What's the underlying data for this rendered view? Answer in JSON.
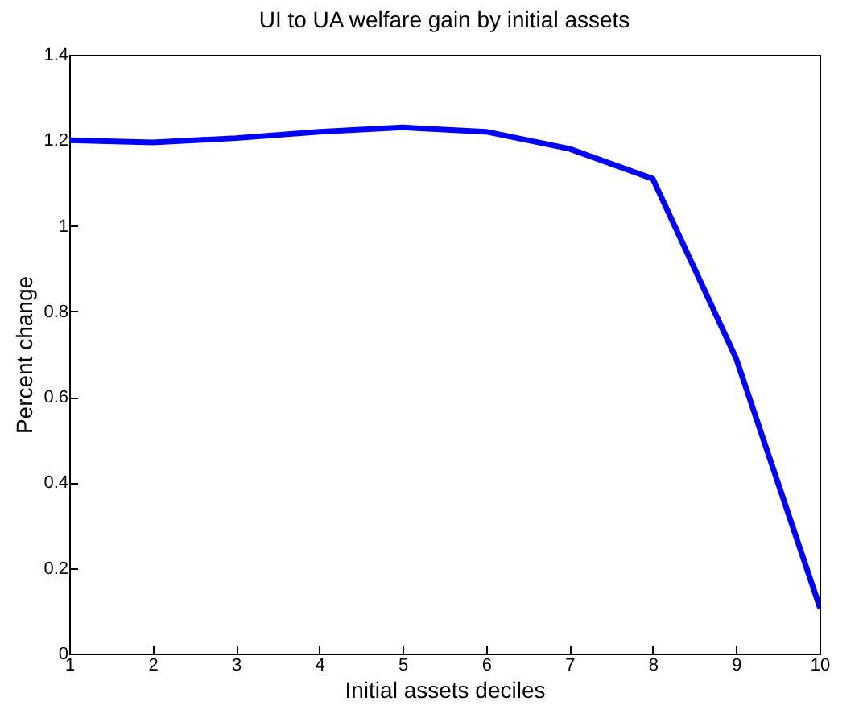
{
  "chart_data": {
    "type": "line",
    "title": "UI to UA welfare gain by initial assets",
    "xlabel": "Initial assets deciles",
    "ylabel": "Percent change",
    "x": [
      1,
      2,
      3,
      4,
      5,
      6,
      7,
      8,
      9,
      10
    ],
    "series": [
      {
        "color": "#0000ff",
        "values": [
          1.2,
          1.195,
          1.205,
          1.22,
          1.23,
          1.22,
          1.18,
          1.11,
          0.69,
          0.11
        ]
      }
    ],
    "xlim": [
      1,
      10
    ],
    "xticks": [
      1,
      2,
      3,
      4,
      5,
      6,
      7,
      8,
      9,
      10
    ],
    "ylim": [
      0,
      1.4
    ],
    "yticks": [
      0,
      0.2,
      0.4,
      0.6,
      0.8,
      1,
      1.2,
      1.4
    ],
    "grid": false,
    "marker": "none",
    "line_style": "solid"
  }
}
